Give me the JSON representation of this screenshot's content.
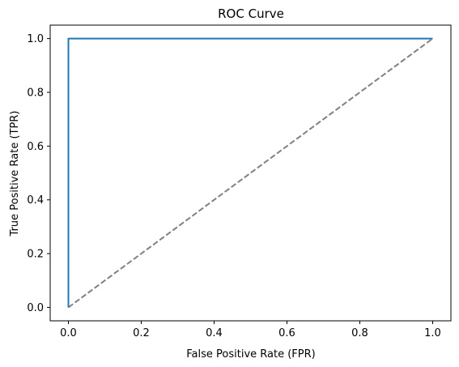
{
  "chart_data": {
    "type": "line",
    "title": "ROC Curve",
    "xlabel": "False Positive Rate (FPR)",
    "ylabel": "True Positive Rate (TPR)",
    "xlim": [
      -0.05,
      1.05
    ],
    "ylim": [
      -0.05,
      1.05
    ],
    "xticks": [
      "0.0",
      "0.2",
      "0.4",
      "0.6",
      "0.8",
      "1.0"
    ],
    "yticks": [
      "0.0",
      "0.2",
      "0.4",
      "0.6",
      "0.8",
      "1.0"
    ],
    "grid": false,
    "series": [
      {
        "x": [
          0.0,
          0.0,
          1.0
        ],
        "y": [
          0.0,
          1.0,
          1.0
        ],
        "color": "#1f77b4",
        "style": "solid"
      },
      {
        "x": [
          0.0,
          1.0
        ],
        "y": [
          0.0,
          1.0
        ],
        "color": "#808080",
        "style": "dashed"
      }
    ]
  }
}
